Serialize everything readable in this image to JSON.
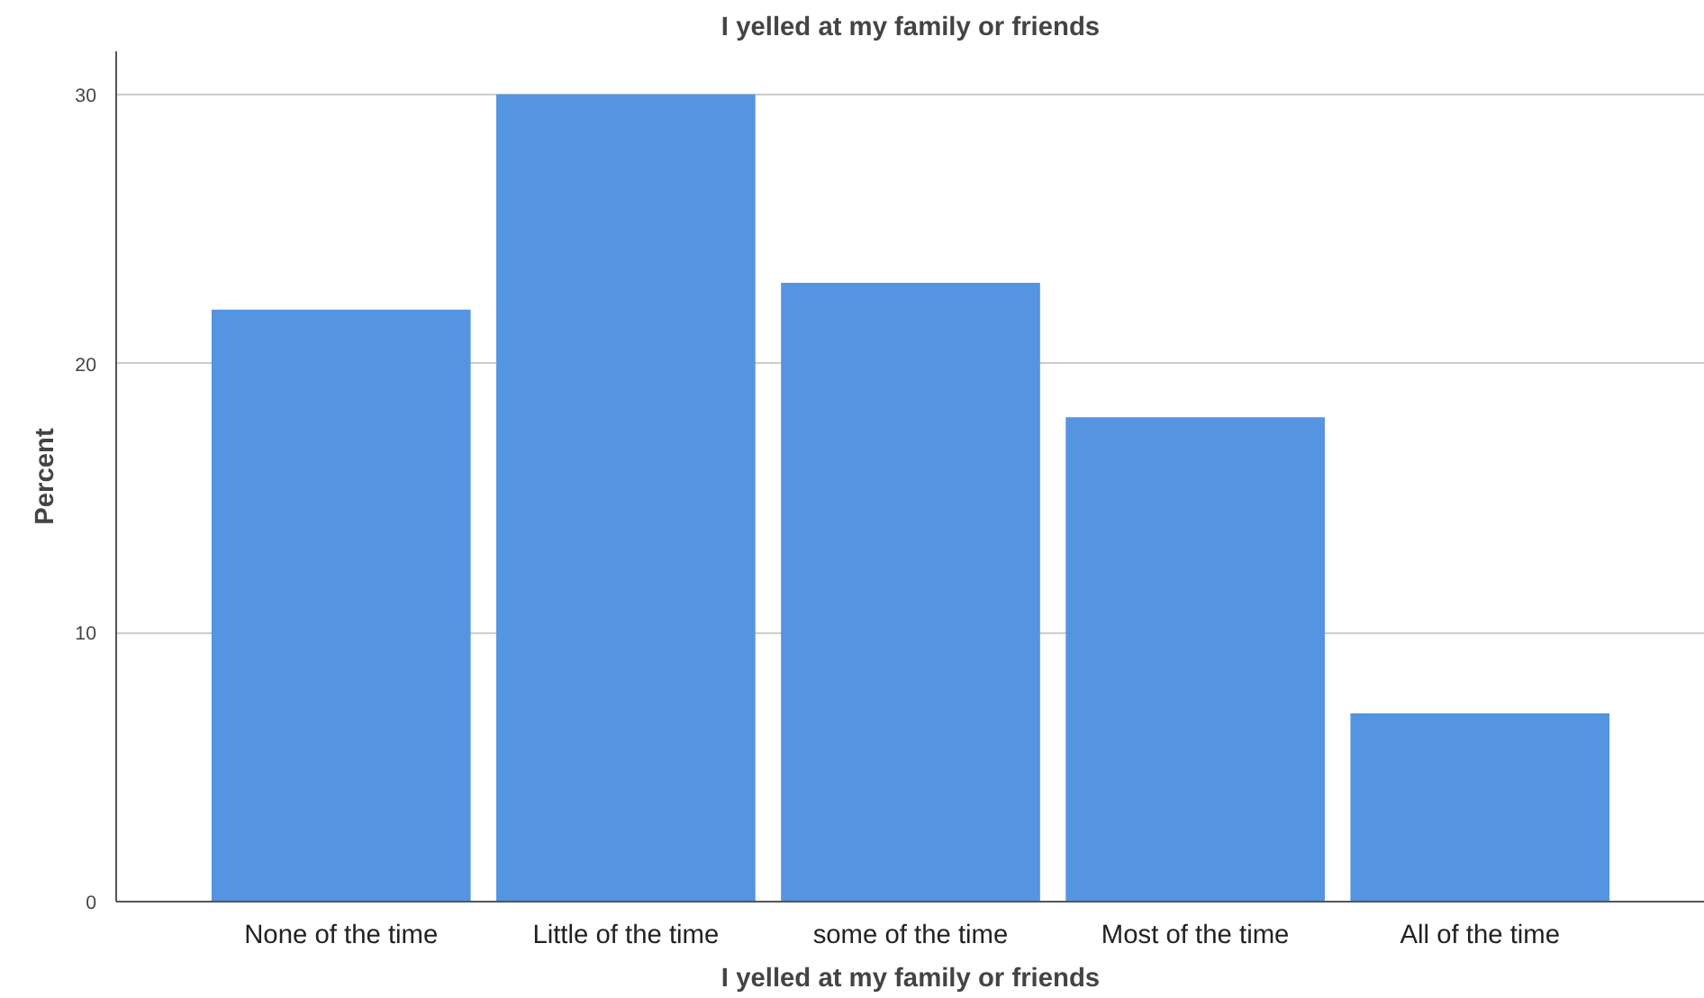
{
  "chart_data": {
    "type": "bar",
    "title": "I yelled at my family or friends",
    "xlabel": "I yelled at my family or friends",
    "ylabel": "Percent",
    "categories": [
      "None of the time",
      "Little of the time",
      "some of the time",
      "Most of the time",
      "All of the time"
    ],
    "values": [
      22,
      30,
      23,
      18,
      7
    ],
    "color": "#5594e0",
    "ylim": [
      0,
      31.6
    ],
    "yticks": [
      0,
      10,
      20,
      30
    ],
    "grid": "y"
  }
}
